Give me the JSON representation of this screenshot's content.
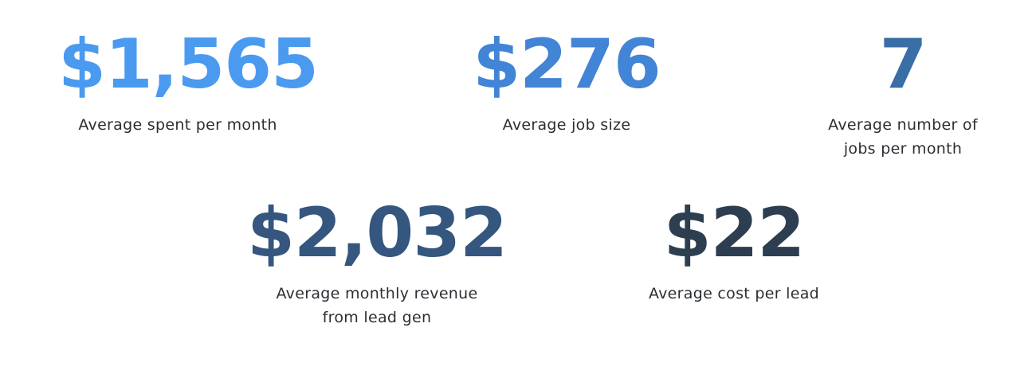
{
  "stats": [
    {
      "value": "$1,565",
      "label": "Average spent per month",
      "color": "#4a9af0"
    },
    {
      "value": "$276",
      "label": "Average job size",
      "color": "#4284d6"
    },
    {
      "value": "7",
      "label": "Average number of jobs per month",
      "color": "#3a6ea6"
    },
    {
      "value": "$2,032",
      "label": "Average monthly revenue from lead gen",
      "color": "#34567f"
    },
    {
      "value": "$22",
      "label": "Average cost per lead",
      "color": "#2d3e50"
    }
  ]
}
